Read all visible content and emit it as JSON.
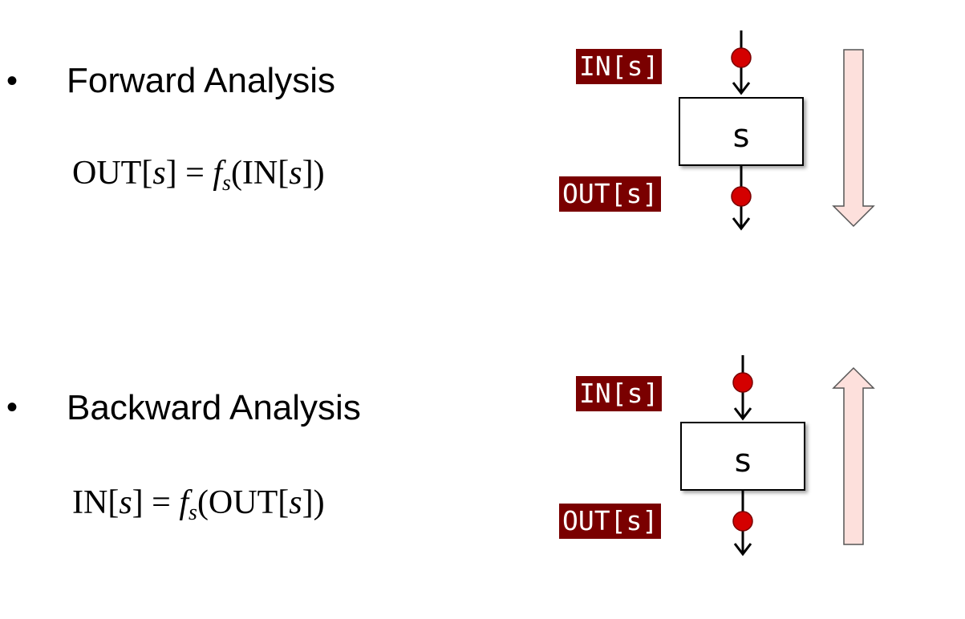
{
  "forward": {
    "bullet": "•",
    "title": "Forward Analysis",
    "equation": {
      "lhs": "OUT[",
      "lhs_var": "s",
      "lhs_close": "] =",
      "f": "f",
      "sub": "s",
      "arg_open": "(IN[",
      "arg_var": "s",
      "arg_close": "])"
    },
    "in_label": "IN[s]",
    "out_label": "OUT[s]",
    "box_label": "s",
    "direction": "down"
  },
  "backward": {
    "bullet": "•",
    "title": "Backward Analysis",
    "equation": {
      "lhs": "IN[",
      "lhs_var": "s",
      "lhs_close": "] =",
      "f": "f",
      "sub": "s",
      "arg_open": "(OUT[",
      "arg_var": "s",
      "arg_close": "])"
    },
    "in_label": "IN[s]",
    "out_label": "OUT[s]",
    "box_label": "s",
    "direction": "up"
  },
  "colors": {
    "label_bg": "#7a0000",
    "dot": "#d40000",
    "arrow_fill": "#fde0dc"
  }
}
